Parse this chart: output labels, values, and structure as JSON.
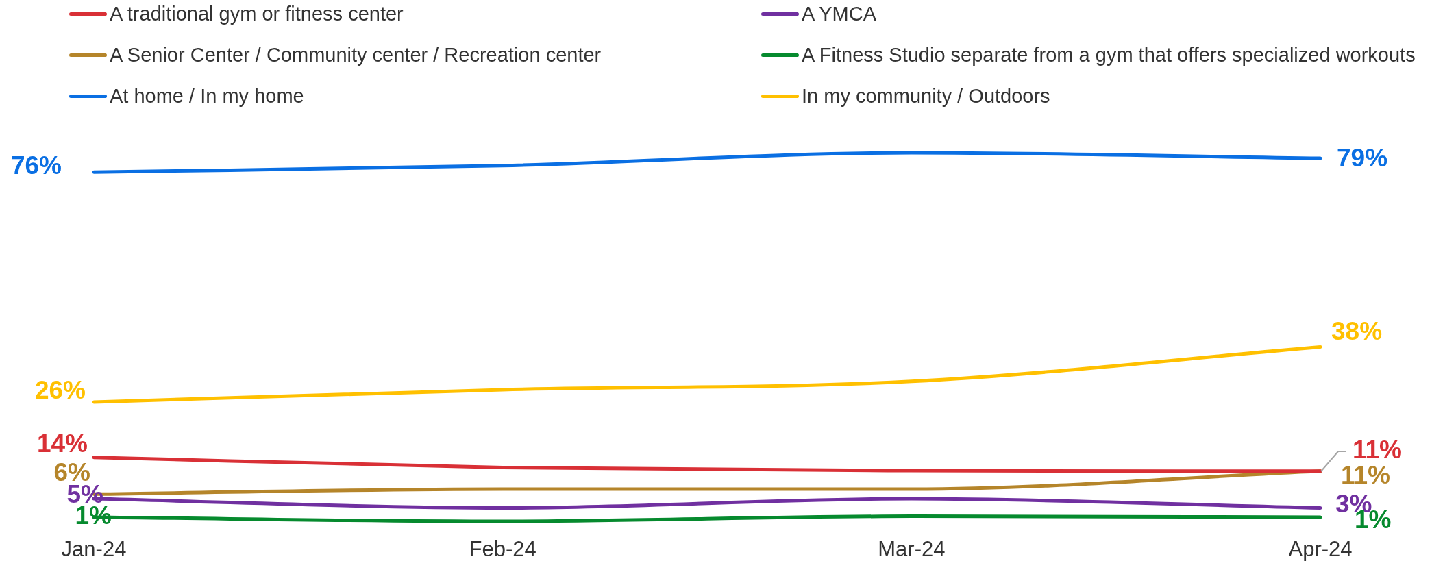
{
  "chart_data": {
    "type": "line",
    "categories": [
      "Jan-24",
      "Feb-24",
      "Mar-24",
      "Apr-24"
    ],
    "series": [
      {
        "name": "A traditional gym or fitness center",
        "color": "#d93036",
        "values": [
          14,
          11.8,
          11.1,
          11
        ],
        "value_labels": [
          "14%",
          null,
          null,
          "11%"
        ]
      },
      {
        "name": "A YMCA",
        "color": "#7030a0",
        "values": [
          5,
          3.0,
          5.0,
          3
        ],
        "value_labels": [
          "5%",
          null,
          null,
          "3%"
        ]
      },
      {
        "name": "A Senior Center / Community center / Recreation center",
        "color": "#b5852a",
        "values": [
          6,
          7.1,
          7.1,
          11
        ],
        "value_labels": [
          "6%",
          null,
          null,
          "11%"
        ]
      },
      {
        "name": "A Fitness Studio separate from a gym that offers specialized workouts",
        "color": "#068a2e",
        "values": [
          1,
          0.1,
          1.2,
          1
        ],
        "value_labels": [
          "1%",
          null,
          null,
          "1%"
        ]
      },
      {
        "name": "At home / In my home",
        "color": "#0a6fe3",
        "values": [
          76,
          77.4,
          80.2,
          79
        ],
        "value_labels": [
          "76%",
          null,
          null,
          "79%"
        ]
      },
      {
        "name": "In my community / Outdoors",
        "color": "#ffc000",
        "values": [
          26,
          28.7,
          30.5,
          38
        ],
        "value_labels": [
          "26%",
          null,
          null,
          "38%"
        ]
      }
    ],
    "legend": "top",
    "tick_labels": "x"
  }
}
